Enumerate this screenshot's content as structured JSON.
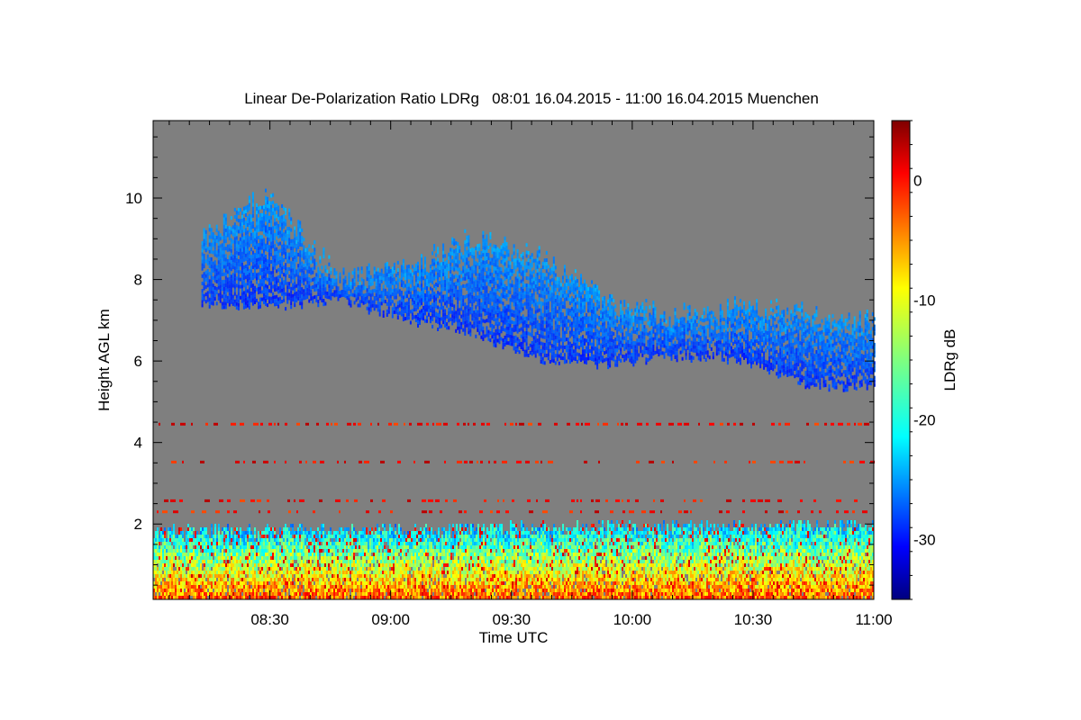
{
  "chart_data": {
    "type": "heatmap",
    "title": "Linear De-Polarization Ratio LDRg   08:01 16.04.2015 - 11:00 16.04.2015 Muenchen",
    "xlabel": "Time UTC",
    "ylabel": "Height AGL km",
    "x_range": [
      "08:01",
      "11:00"
    ],
    "x_ticks": [
      "08:30",
      "09:00",
      "09:30",
      "10:00",
      "10:30",
      "11:00"
    ],
    "ylim": [
      0.15,
      11.9
    ],
    "y_ticks": [
      2,
      4,
      6,
      8,
      10
    ],
    "y_tick_labels": [
      "2",
      "4",
      "6",
      "8",
      "10"
    ],
    "colorbar": {
      "label": "LDRg dB",
      "range": [
        -35,
        5
      ],
      "ticks": [
        0,
        -10,
        -20,
        -30
      ],
      "tick_labels": [
        "0",
        "-10",
        "-20",
        "-30"
      ],
      "colormap": "jet"
    },
    "background_color": "#7f7f7f",
    "features": {
      "cirrus_cloud": {
        "time_range": [
          "08:13",
          "11:00"
        ],
        "base_km": [
          7.4,
          7.3,
          7.5,
          7.0,
          6.7,
          6.0,
          5.9,
          6.1,
          6.0,
          5.4,
          5.3
        ],
        "top_km": [
          8.9,
          10.1,
          8.0,
          8.2,
          9.0,
          8.6,
          7.4,
          7.0,
          7.3,
          7.1,
          6.9
        ],
        "ldr_db": -25
      },
      "noise_layers_km": [
        4.45,
        3.52,
        2.3,
        2.57
      ],
      "noise_layer_ldr_db": 0,
      "boundary_layer": {
        "top_km": 2.0,
        "ldr_db_range": [
          -22,
          -3
        ]
      }
    }
  }
}
